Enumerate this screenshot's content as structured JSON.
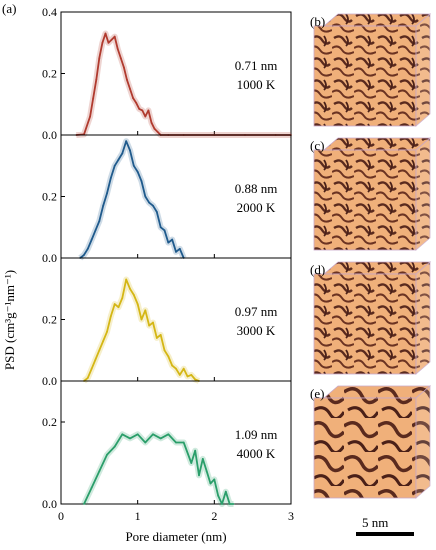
{
  "figure": {
    "panel_label_a": "(a)",
    "ylabel": "PSD (cm³g⁻¹nm⁻¹)",
    "xlabel": "Pore diameter (nm)",
    "scale_bar_label": "5 nm"
  },
  "chart_data": [
    {
      "type": "line",
      "label_lines": [
        "0.71 nm",
        "1000 K"
      ],
      "color": "#b03a2e",
      "xlim": [
        0,
        3
      ],
      "ylim": [
        0,
        0.4
      ],
      "yticks": [
        "0.0",
        "0.2",
        "0.4"
      ],
      "x": [
        0.2,
        0.3,
        0.38,
        0.42,
        0.46,
        0.5,
        0.54,
        0.58,
        0.62,
        0.66,
        0.7,
        0.74,
        0.78,
        0.82,
        0.86,
        0.9,
        0.94,
        0.98,
        1.02,
        1.06,
        1.1,
        1.14,
        1.18,
        1.22,
        1.26,
        1.3,
        1.4,
        1.6,
        2.0,
        2.4,
        2.8,
        3.0
      ],
      "y": [
        0.0,
        0.002,
        0.06,
        0.12,
        0.18,
        0.25,
        0.3,
        0.33,
        0.3,
        0.31,
        0.32,
        0.28,
        0.25,
        0.22,
        0.18,
        0.15,
        0.12,
        0.105,
        0.085,
        0.08,
        0.06,
        0.08,
        0.04,
        0.02,
        0.01,
        0.0,
        0.0,
        0.0,
        0.0,
        0.0,
        0.0,
        0.0
      ]
    },
    {
      "type": "line",
      "label_lines": [
        "0.88 nm",
        "2000 K"
      ],
      "color": "#1f5a8c",
      "xlim": [
        0,
        3
      ],
      "ylim": [
        0,
        0.4
      ],
      "yticks": [
        "0.0",
        "0.2",
        ""
      ],
      "x": [
        0.25,
        0.3,
        0.35,
        0.4,
        0.45,
        0.5,
        0.55,
        0.6,
        0.65,
        0.7,
        0.75,
        0.8,
        0.85,
        0.9,
        0.95,
        1.0,
        1.05,
        1.1,
        1.15,
        1.2,
        1.25,
        1.3,
        1.35,
        1.4,
        1.45,
        1.5,
        1.55,
        1.6
      ],
      "y": [
        0.0,
        0.01,
        0.03,
        0.06,
        0.09,
        0.12,
        0.17,
        0.21,
        0.26,
        0.3,
        0.32,
        0.34,
        0.38,
        0.35,
        0.3,
        0.28,
        0.25,
        0.2,
        0.18,
        0.17,
        0.15,
        0.1,
        0.09,
        0.05,
        0.06,
        0.02,
        0.03,
        0.0
      ]
    },
    {
      "type": "line",
      "label_lines": [
        "0.97 nm",
        "3000 K"
      ],
      "color": "#d4b614",
      "xlim": [
        0,
        3
      ],
      "ylim": [
        0,
        0.4
      ],
      "yticks": [
        "0.0",
        "0.2",
        ""
      ],
      "x": [
        0.3,
        0.35,
        0.4,
        0.45,
        0.5,
        0.55,
        0.6,
        0.65,
        0.7,
        0.75,
        0.8,
        0.85,
        0.9,
        0.95,
        1.0,
        1.05,
        1.1,
        1.15,
        1.2,
        1.25,
        1.3,
        1.35,
        1.4,
        1.45,
        1.5,
        1.55,
        1.6,
        1.65,
        1.7,
        1.75,
        1.8
      ],
      "y": [
        0.0,
        0.01,
        0.04,
        0.07,
        0.1,
        0.13,
        0.16,
        0.21,
        0.25,
        0.24,
        0.27,
        0.33,
        0.3,
        0.28,
        0.25,
        0.2,
        0.23,
        0.18,
        0.19,
        0.14,
        0.15,
        0.1,
        0.08,
        0.05,
        0.04,
        0.02,
        0.04,
        0.015,
        0.02,
        0.005,
        0.0
      ]
    },
    {
      "type": "line",
      "label_lines": [
        "1.09 nm",
        "4000 K"
      ],
      "color": "#2a9e6a",
      "xlim": [
        0,
        3
      ],
      "ylim": [
        0,
        0.3
      ],
      "yticks": [
        "0.0",
        "0.2",
        ""
      ],
      "x": [
        0.3,
        0.4,
        0.5,
        0.6,
        0.7,
        0.8,
        0.9,
        1.0,
        1.1,
        1.2,
        1.3,
        1.4,
        1.5,
        1.6,
        1.7,
        1.75,
        1.8,
        1.85,
        1.9,
        1.95,
        2.0,
        2.05,
        2.1,
        2.15,
        2.2,
        2.25
      ],
      "y": [
        0.0,
        0.04,
        0.08,
        0.12,
        0.14,
        0.17,
        0.16,
        0.17,
        0.15,
        0.17,
        0.16,
        0.17,
        0.15,
        0.15,
        0.1,
        0.13,
        0.07,
        0.11,
        0.08,
        0.05,
        0.06,
        0.02,
        0.0,
        0.03,
        0.0,
        0.0
      ]
    }
  ],
  "xticks": [
    "0",
    "1",
    "2",
    "3"
  ],
  "images": [
    {
      "label": "(b)"
    },
    {
      "label": "(c)"
    },
    {
      "label": "(d)"
    },
    {
      "label": "(e)"
    }
  ]
}
